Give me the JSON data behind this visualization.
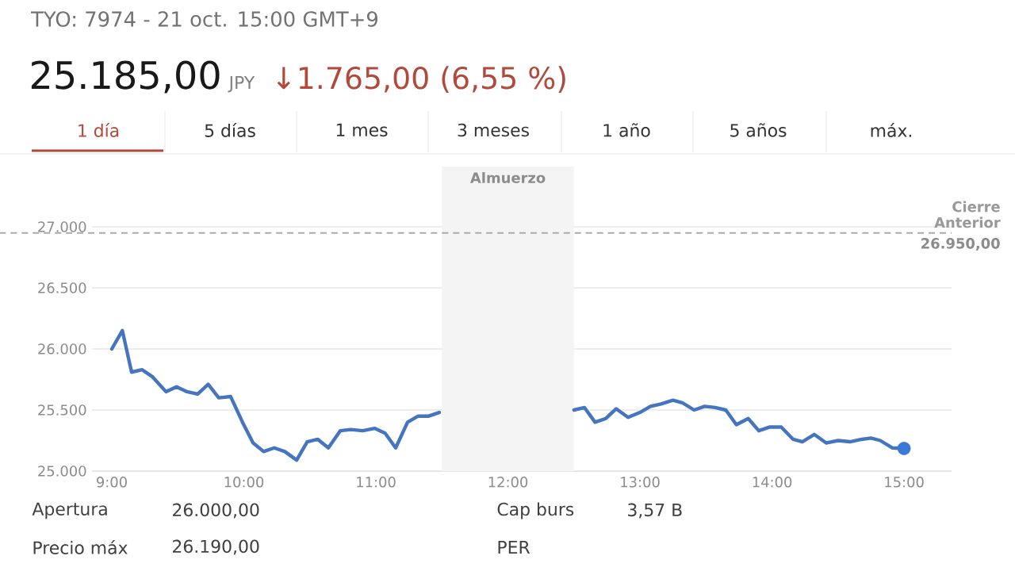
{
  "chart_data": {
    "type": "line",
    "title": "TYO: 7974 - 21 oct. 15:00 GMT+9",
    "annotations": [
      "25.185,00",
      "JPY",
      "↓1.765,00 (6,55 %)",
      "1 día",
      "5 días",
      "1 mes",
      "3 meses",
      "1 año",
      "5 años",
      "máx.",
      "26.950,00",
      "Apertura",
      "26.000,00",
      "Cap burs",
      "3,57 B",
      "Precio máx",
      "26.190,00",
      "PER"
    ],
    "xlim": [
      8.85,
      15.36
    ],
    "xticks": [
      {
        "value": 9,
        "label": "9:00"
      },
      {
        "value": 10,
        "label": "10:00"
      },
      {
        "value": 11,
        "label": "11:00"
      },
      {
        "value": 12,
        "label": "12:00"
      },
      {
        "value": 13,
        "label": "13:00"
      },
      {
        "value": 14,
        "label": "14:00"
      },
      {
        "value": 15,
        "label": "15:00"
      }
    ],
    "ylim": [
      25000,
      27000
    ],
    "yticks": [
      {
        "value": 25000,
        "label": "25.000"
      },
      {
        "value": 25500,
        "label": "25.500"
      },
      {
        "value": 26000,
        "label": "26.000"
      },
      {
        "value": 26500,
        "label": "26.500"
      },
      {
        "value": 27000,
        "label": "27.000"
      }
    ],
    "grid": "y",
    "ref_lines": [
      {
        "axis": "y",
        "value": 26950,
        "label": "Cierre Anterior",
        "color": "#aaaaaa",
        "line_style": "dashed"
      }
    ],
    "bands": [
      {
        "axis": "x",
        "from": 11.5,
        "to": 12.5,
        "label": "Almuerzo",
        "color": "#f4f4f4"
      }
    ],
    "series": [
      {
        "type": "line",
        "color": "#4575c0",
        "x": [
          9.0,
          9.08,
          9.15,
          9.23,
          9.31,
          9.41,
          9.49,
          9.57,
          9.65,
          9.73,
          9.81,
          9.9,
          9.99,
          10.07,
          10.15,
          10.23,
          10.31,
          10.4,
          10.48,
          10.56,
          10.64,
          10.73,
          10.81,
          10.9,
          10.99,
          11.07,
          11.15,
          11.24,
          11.32,
          11.4,
          11.48,
          12.0,
          12.5,
          12.58,
          12.66,
          12.74,
          12.82,
          12.91,
          13.0,
          13.08,
          13.16,
          13.25,
          13.32,
          13.41,
          13.49,
          13.57,
          13.65,
          13.73,
          13.82,
          13.9,
          13.98,
          14.07,
          14.16,
          14.23,
          14.32,
          14.41,
          14.5,
          14.59,
          14.68,
          14.75,
          14.82,
          14.91,
          15.0
        ],
        "values": [
          26000,
          26150,
          25810,
          25830,
          25770,
          25650,
          25690,
          25650,
          25630,
          25710,
          25600,
          25610,
          25400,
          25230,
          25160,
          25190,
          25160,
          25090,
          25240,
          25260,
          25190,
          25330,
          25340,
          25330,
          25350,
          25310,
          25190,
          25400,
          25450,
          25450,
          25480,
          null,
          25500,
          25520,
          25400,
          25430,
          25510,
          25440,
          25480,
          25530,
          25550,
          25580,
          25560,
          25500,
          25530,
          25520,
          25500,
          25380,
          25430,
          25330,
          25360,
          25360,
          25260,
          25240,
          25300,
          25230,
          25250,
          25240,
          25260,
          25270,
          25250,
          25190,
          25185
        ]
      },
      {
        "type": "scatter",
        "color": "#3b78d8",
        "x": [
          15.0
        ],
        "values": [
          25185
        ]
      }
    ]
  }
}
